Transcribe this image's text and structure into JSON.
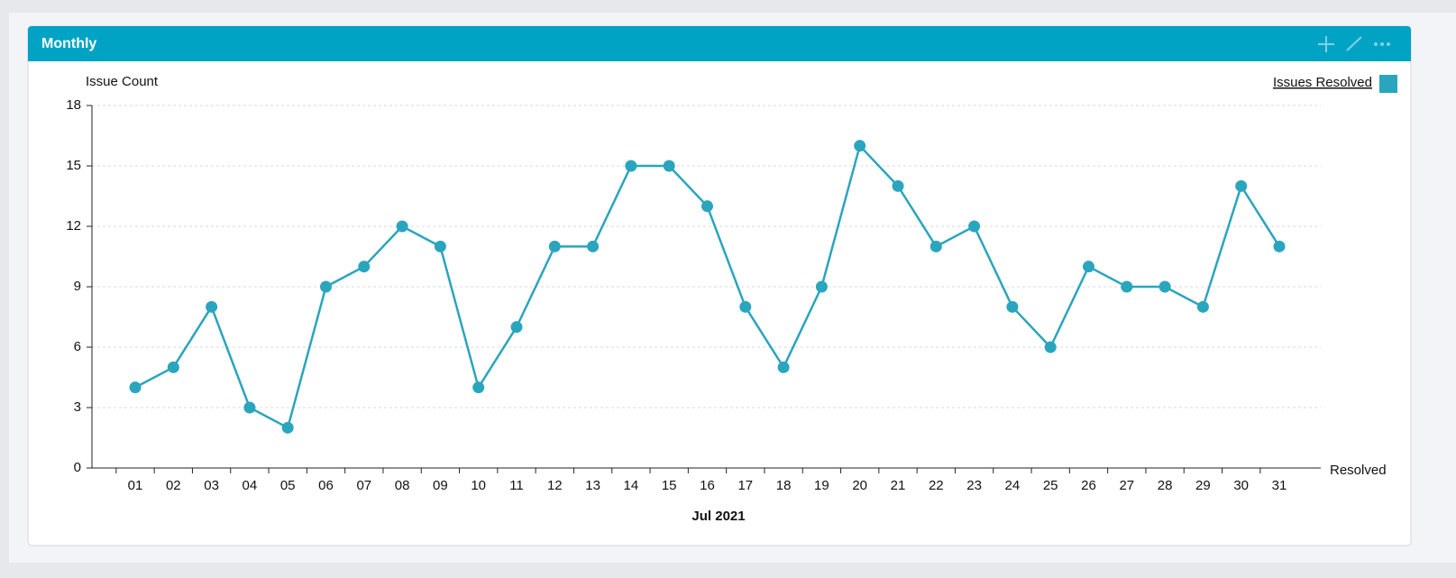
{
  "chart_data": {
    "type": "line",
    "title": "Monthly",
    "y_label": "Issue Count",
    "x_label": "Jul 2021",
    "x_end_label": "Resolved",
    "categories": [
      "01",
      "02",
      "03",
      "04",
      "05",
      "06",
      "07",
      "08",
      "09",
      "10",
      "11",
      "12",
      "13",
      "14",
      "15",
      "16",
      "17",
      "18",
      "19",
      "20",
      "21",
      "22",
      "23",
      "24",
      "25",
      "26",
      "27",
      "28",
      "29",
      "30",
      "31"
    ],
    "series": [
      {
        "name": "Issues Resolved",
        "color": "#2aa5be",
        "values": [
          4,
          5,
          8,
          3,
          2,
          9,
          10,
          12,
          11,
          4,
          7,
          11,
          11,
          15,
          15,
          13,
          8,
          5,
          9,
          16,
          14,
          11,
          12,
          8,
          6,
          10,
          9,
          9,
          8,
          14,
          11
        ]
      }
    ],
    "ylim": [
      0,
      18
    ],
    "yticks": [
      0,
      3,
      6,
      9,
      12,
      15,
      18
    ],
    "grid": true,
    "legend": "top-right"
  }
}
